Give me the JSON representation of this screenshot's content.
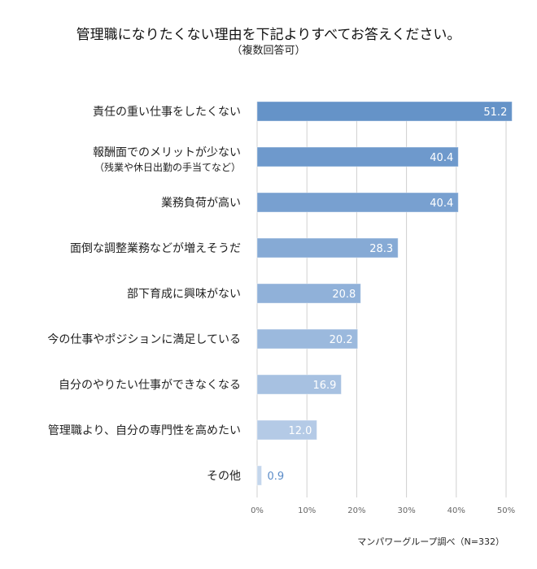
{
  "chart_data": {
    "type": "bar",
    "orientation": "horizontal",
    "title": "管理職になりたくない理由を下記よりすべてお答えください。",
    "subtitle": "（複数回答可）",
    "categories": [
      [
        "責任の重い仕事をしたくない"
      ],
      [
        "報酬面でのメリットが少ない",
        "（残業や休日出勤の手当てなど）"
      ],
      [
        "業務負荷が高い"
      ],
      [
        "面倒な調整業務などが増えそうだ"
      ],
      [
        "部下育成に興味がない"
      ],
      [
        "今の仕事やポジションに満足している"
      ],
      [
        "自分のやりたい仕事ができなくなる"
      ],
      [
        "管理職より、自分の専門性を高めたい"
      ],
      [
        "その他"
      ]
    ],
    "values": [
      51.2,
      40.4,
      40.4,
      28.3,
      20.8,
      20.2,
      16.9,
      12.0,
      0.9
    ],
    "data_labels": [
      "51.2",
      "40.4",
      "40.4",
      "28.3",
      "20.8",
      "20.2",
      "16.9",
      "12.0",
      "0.9"
    ],
    "colors": [
      "#6593c8",
      "#6e99cc",
      "#78a0d0",
      "#86aad5",
      "#90b1d9",
      "#9bb9dd",
      "#a7c1e1",
      "#b4cae6",
      "#c4d6ec"
    ],
    "xlim": [
      0,
      50
    ],
    "xticks": [
      "0%",
      "10%",
      "20%",
      "30%",
      "40%",
      "50%"
    ],
    "grid": true,
    "label_color_outside": "#5b8cc8",
    "source": "マンパワーグループ調べ（N=332）"
  }
}
